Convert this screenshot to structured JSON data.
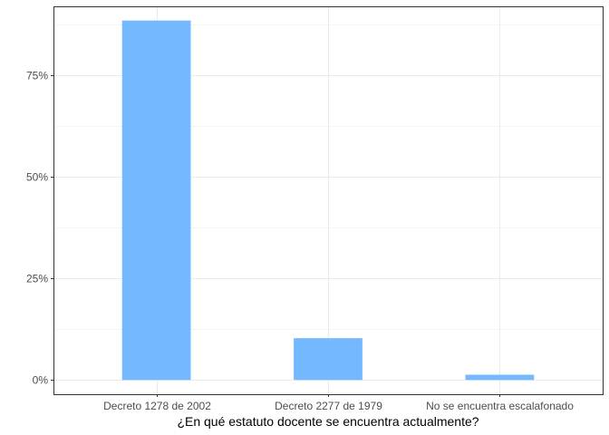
{
  "chart_data": {
    "type": "bar",
    "title": "",
    "xlabel": "¿En qué estatuto docente se encuentra actualmente?",
    "ylabel": "",
    "categories": [
      "Decreto 1278 de 2002",
      "Decreto 2277 de 1979",
      "No se encuentra escalafonado"
    ],
    "values": [
      88.5,
      10.3,
      1.3
    ],
    "value_unit": "%",
    "ylim": [
      -3.5,
      92
    ],
    "yticks": [
      0,
      25,
      50,
      75
    ],
    "ytick_labels": [
      "0%",
      "25%",
      "50%",
      "75%"
    ],
    "grid": true,
    "legend": "none",
    "bar_color": "#74b8ff"
  }
}
